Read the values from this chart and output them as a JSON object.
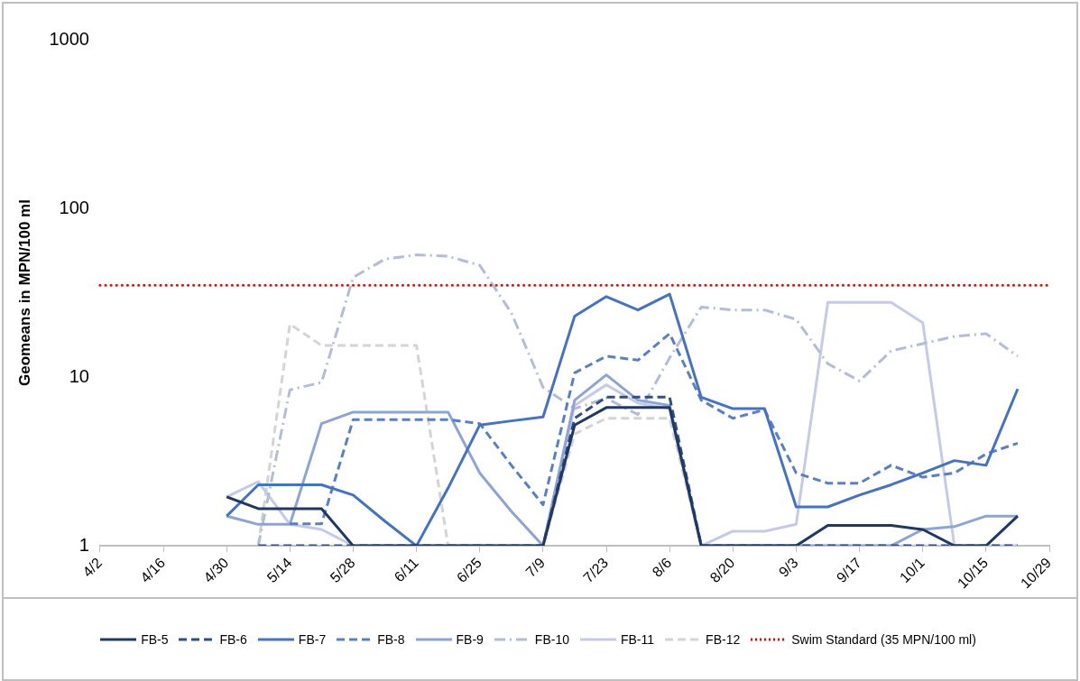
{
  "chart_data": {
    "type": "line",
    "ylabel": "Geomeans in MPN/100 ml",
    "log": true,
    "grid": false,
    "legend": "bottom",
    "marker": "none",
    "x": [
      "--04-30",
      "--05-07",
      "--05-14",
      "--05-21",
      "--05-28",
      "--06-04",
      "--06-11",
      "--06-18",
      "--06-25",
      "--07-02",
      "--07-09",
      "--07-16",
      "--07-23",
      "--07-30",
      "--08-06",
      "--08-13",
      "--08-20",
      "--08-27",
      "--09-03",
      "--09-10",
      "--09-17",
      "--09-24",
      "--10-01",
      "--10-08",
      "--10-15",
      "--10-22"
    ],
    "xlim": [
      "--04-02",
      "--10-29"
    ],
    "xticks": [
      {
        "value": "--04-02",
        "label": "4/2"
      },
      {
        "value": "--04-16",
        "label": "4/16"
      },
      {
        "value": "--04-30",
        "label": "4/30"
      },
      {
        "value": "--05-14",
        "label": "5/14"
      },
      {
        "value": "--05-28",
        "label": "5/28"
      },
      {
        "value": "--06-11",
        "label": "6/11"
      },
      {
        "value": "--06-25",
        "label": "6/25"
      },
      {
        "value": "--07-09",
        "label": "7/9"
      },
      {
        "value": "--07-23",
        "label": "7/23"
      },
      {
        "value": "--08-06",
        "label": "8/6"
      },
      {
        "value": "--08-20",
        "label": "8/20"
      },
      {
        "value": "--09-03",
        "label": "9/3"
      },
      {
        "value": "--09-17",
        "label": "9/17"
      },
      {
        "value": "--10-01",
        "label": "10/1"
      },
      {
        "value": "--10-15",
        "label": "10/15"
      },
      {
        "value": "--10-29",
        "label": "10/29"
      }
    ],
    "ylim": [
      1,
      1000
    ],
    "yticks": [
      1,
      10,
      100,
      1000
    ],
    "series": [
      {
        "name": "FB-5",
        "color": "#1f3864",
        "line_style": "solid",
        "values": [
          1.95,
          1.66,
          1.66,
          1.66,
          1,
          1,
          1,
          1,
          1,
          1,
          1,
          5.2,
          6.6,
          6.6,
          6.6,
          1,
          1,
          1,
          1,
          1.32,
          1.32,
          1.32,
          1.25,
          1,
          1,
          1.5
        ]
      },
      {
        "name": "FB-6",
        "color": "#2f4f86",
        "line_style": "dashed",
        "values": [
          null,
          1,
          1,
          1,
          1,
          1,
          1,
          1,
          1,
          1,
          1,
          5.7,
          7.6,
          7.6,
          7.6,
          1,
          1,
          1,
          1,
          1,
          1,
          1,
          1,
          1,
          1,
          1
        ]
      },
      {
        "name": "FB-7",
        "color": "#4472c4",
        "line_style": "solid",
        "values": [
          1.5,
          2.3,
          2.3,
          2.3,
          2,
          1.4,
          1,
          2.2,
          5.2,
          5.5,
          5.8,
          23,
          30,
          25,
          31,
          7.6,
          6.5,
          6.5,
          1.7,
          1.7,
          2,
          2.3,
          2.7,
          3.2,
          3,
          8.5
        ]
      },
      {
        "name": "FB-8",
        "color": "#5b7fc7",
        "line_style": "dashed",
        "values": [
          null,
          null,
          1.35,
          1.35,
          5.6,
          5.6,
          5.6,
          5.6,
          5.3,
          3,
          1.75,
          10.6,
          13.3,
          12.6,
          18.1,
          7.3,
          5.7,
          6.4,
          2.7,
          2.35,
          2.35,
          3,
          2.55,
          2.7,
          3.5,
          4.06
        ]
      },
      {
        "name": "FB-9",
        "color": "#8ea3d6",
        "line_style": "solid",
        "values": [
          1.5,
          1.34,
          1.34,
          5.3,
          6.2,
          6.2,
          6.2,
          6.2,
          2.7,
          1.6,
          1,
          7.3,
          10.3,
          7.3,
          6.8,
          1,
          1,
          1,
          1,
          1,
          1,
          1,
          1.25,
          1.3,
          1.5,
          1.5
        ]
      },
      {
        "name": "FB-10",
        "color": "#b4bdd6",
        "line_style": "dashdot",
        "values": [
          null,
          1,
          8.4,
          9.3,
          39,
          50,
          53,
          52,
          46,
          24,
          8.7,
          6.5,
          7.5,
          6,
          13,
          26,
          25,
          25,
          22,
          12,
          9.5,
          14.3,
          15.8,
          17.4,
          18.1,
          13.3
        ]
      },
      {
        "name": "FB-11",
        "color": "#c5cbe6",
        "line_style": "solid",
        "values": [
          1.95,
          2.4,
          1.34,
          1.25,
          1,
          1,
          1,
          1,
          1,
          1,
          1,
          6.8,
          9,
          7,
          6.5,
          1,
          1.22,
          1.22,
          1.34,
          27.7,
          27.7,
          27.7,
          21,
          1,
          1,
          1
        ]
      },
      {
        "name": "FB-12",
        "color": "#d4d4d4",
        "line_style": "dashed",
        "values": [
          null,
          1,
          20.6,
          15.4,
          15.4,
          15.4,
          15.4,
          1,
          1,
          1,
          1,
          4.6,
          5.7,
          5.7,
          5.7,
          1,
          1,
          1,
          1,
          1,
          1,
          1,
          1,
          1,
          1,
          1
        ]
      }
    ],
    "ref_lines": [
      {
        "axis": "y",
        "value": 35,
        "label": "Swim Standard (35 MPN/100 ml)",
        "color": "#ff0000",
        "line_style": "dotted"
      }
    ]
  }
}
